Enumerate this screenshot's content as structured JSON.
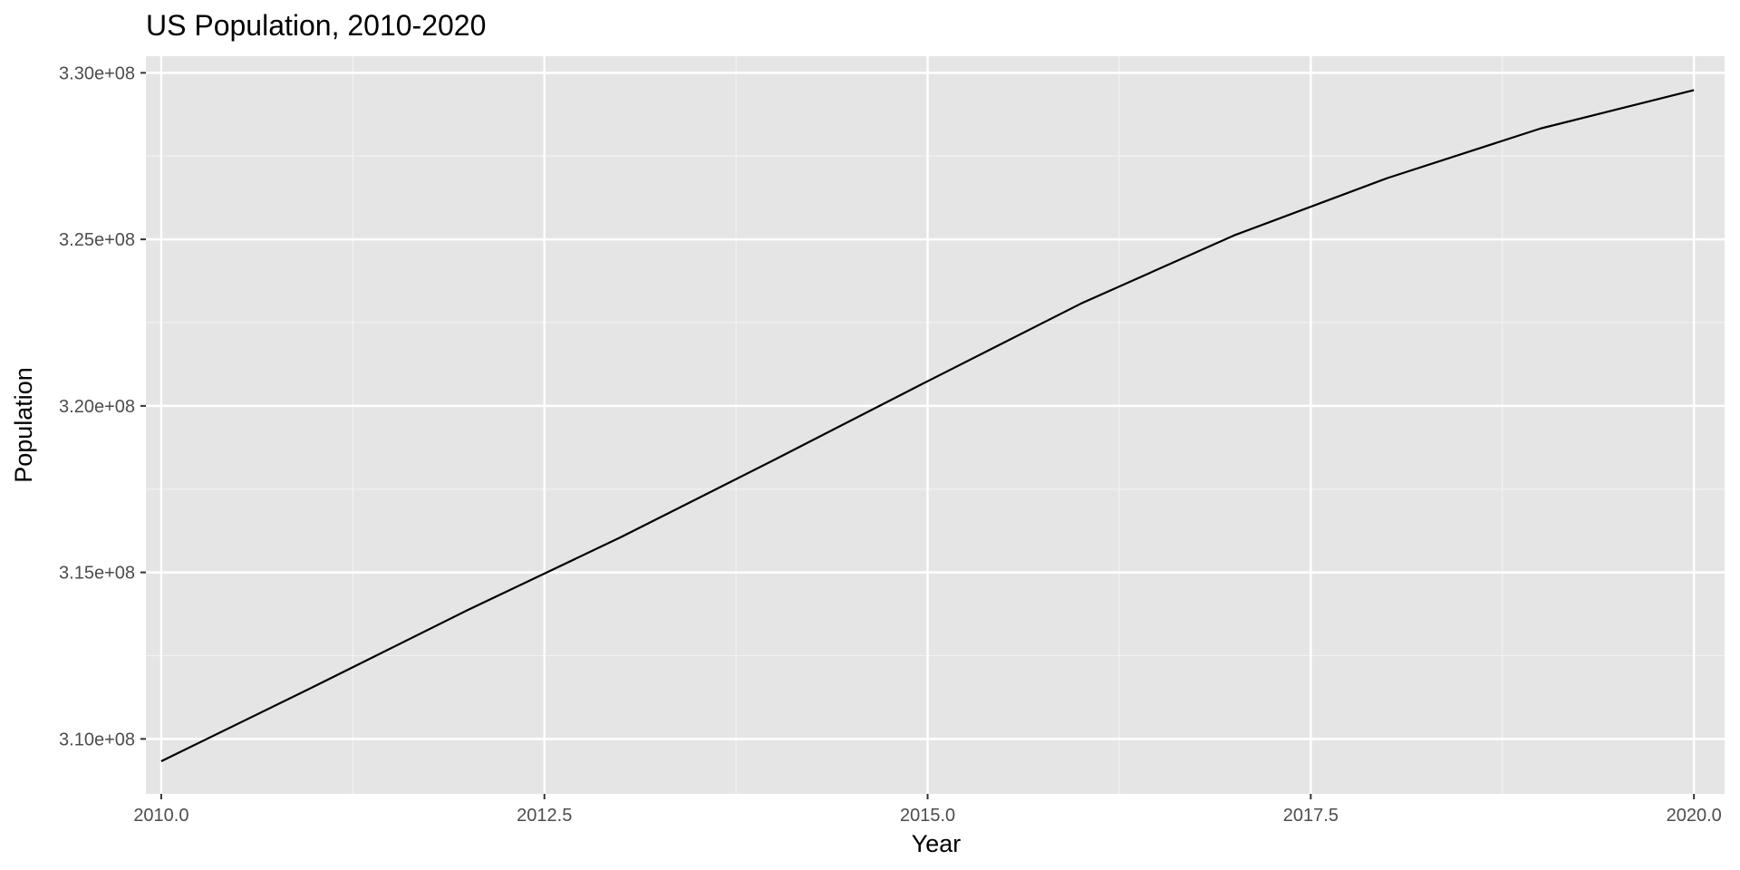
{
  "chart_data": {
    "type": "line",
    "title": "US Population, 2010-2020",
    "xlabel": "Year",
    "ylabel": "Population",
    "x": [
      2010,
      2011,
      2012,
      2013,
      2014,
      2015,
      2016,
      2017,
      2018,
      2019,
      2020
    ],
    "series": [
      {
        "values": [
          309330000,
          311580000,
          313870000,
          316060000,
          318380000,
          320740000,
          323070000,
          325120000,
          326840000,
          328330000,
          329480000
        ]
      }
    ],
    "xlim": [
      2009.9,
      2020.2
    ],
    "ylim": [
      308350000,
      330500000
    ],
    "x_ticks": [
      2010.0,
      2012.5,
      2015.0,
      2017.5,
      2020.0
    ],
    "x_tick_labels": [
      "2010.0",
      "2012.5",
      "2015.0",
      "2017.5",
      "2020.0"
    ],
    "y_ticks": [
      310000000,
      315000000,
      320000000,
      325000000,
      330000000
    ],
    "y_tick_labels": [
      "3.10e+08",
      "3.15e+08",
      "3.20e+08",
      "3.25e+08",
      "3.30e+08"
    ],
    "grid": true,
    "legend": "none",
    "colors": {
      "panel_background": "#e5e5e5",
      "grid_major": "#ffffff",
      "grid_minor": "#f2f2f2",
      "line": "#000000",
      "tick_text": "#4d4d4d",
      "tick_mark": "#333333",
      "text": "#000000"
    }
  }
}
